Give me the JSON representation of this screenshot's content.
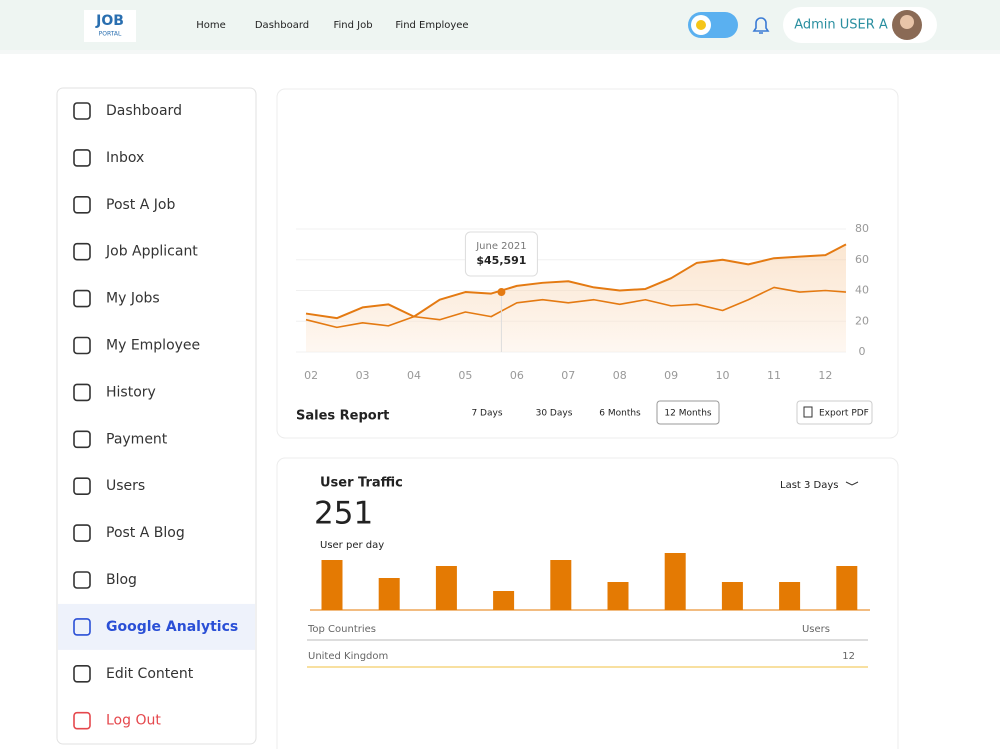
{
  "nav": {
    "logo_top": "JOB",
    "logo_bottom": "PORTAL",
    "links": [
      "Home",
      "Dashboard",
      "Find Job",
      "Find Employee"
    ],
    "user": "Admin USER A"
  },
  "sidebar": {
    "items": [
      "Dashboard",
      "Inbox",
      "Post A Job",
      "Job Applicant",
      "My Jobs",
      "My Employee",
      "History",
      "Payment",
      "Users",
      "Post A Blog",
      "Blog",
      "Google Analytics",
      "Edit Content",
      "Log Out"
    ],
    "active": "Google Analytics",
    "danger": "Log Out"
  },
  "sales_report": {
    "type": "line",
    "title": "Sales Report",
    "x": [
      1.9,
      2.5,
      3,
      3.5,
      4,
      4.5,
      5,
      5.5,
      6,
      6.5,
      7,
      7.5,
      8,
      8.5,
      9,
      9.5,
      10,
      10.5,
      11,
      11.5,
      12,
      12.4
    ],
    "xlim": [
      1.9,
      12.4
    ],
    "xticks": [
      {
        "value": 2,
        "label": "02"
      },
      {
        "value": 3,
        "label": "03"
      },
      {
        "value": 4,
        "label": "04"
      },
      {
        "value": 5,
        "label": "05"
      },
      {
        "value": 6,
        "label": "06"
      },
      {
        "value": 7,
        "label": "07"
      },
      {
        "value": 8,
        "label": "08"
      },
      {
        "value": 9,
        "label": "09"
      },
      {
        "value": 10,
        "label": "10"
      },
      {
        "value": 11,
        "label": "11"
      },
      {
        "value": 12,
        "label": "12"
      }
    ],
    "ylim": [
      0,
      80
    ],
    "yticks": [
      0,
      20,
      40,
      60,
      80
    ],
    "grid": true,
    "series": [
      {
        "color": "#e47a12",
        "values": [
          25,
          22,
          29,
          31,
          23,
          34,
          39,
          38,
          43,
          45,
          46,
          42,
          40,
          41,
          48,
          58,
          60,
          57,
          61,
          62,
          63,
          70
        ]
      },
      {
        "color": "#e47a12",
        "values": [
          21,
          16,
          19,
          17,
          23,
          21,
          26,
          23,
          32,
          34,
          32,
          34,
          31,
          34,
          30,
          31,
          27,
          34,
          42,
          39,
          40,
          39
        ]
      }
    ],
    "tooltip": {
      "x": 5.7,
      "y": 39,
      "title": "June 2021",
      "text": "$45,591"
    },
    "ranges": [
      "7 Days",
      "30 Days",
      "6 Months",
      "12 Months"
    ],
    "selected_range": "12 Months",
    "export": "Export PDF"
  },
  "user_traffic": {
    "type": "bar",
    "title": "User Traffic",
    "total": 251,
    "subtitle": "User per day",
    "range": "Last 3 Days",
    "color": "#e47a03",
    "values": [
      50,
      32,
      44,
      19,
      50,
      28,
      57,
      28,
      28,
      44
    ],
    "table": {
      "header": [
        "Top Countries",
        "Users"
      ],
      "rows": [
        [
          "United Kingdom",
          12
        ]
      ]
    }
  }
}
